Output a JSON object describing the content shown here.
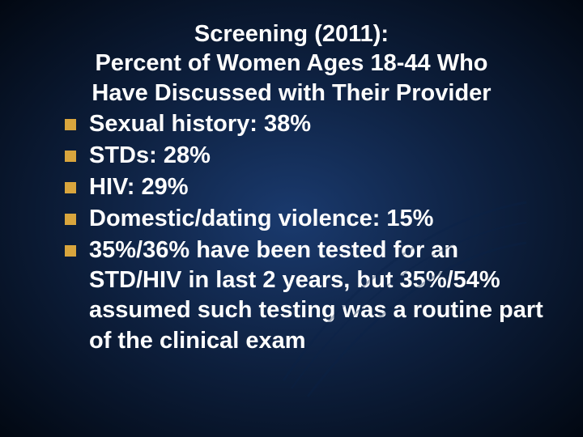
{
  "slide": {
    "title_line1": "Screening (2011):",
    "title_line2": "Percent of Women Ages 18-44 Who",
    "title_line3": "Have Discussed with Their Provider",
    "title_fontsize": 29,
    "title_color": "#fdfdfd",
    "bullets": [
      "Sexual history: 38%",
      "STDs: 28%",
      "HIV: 29%",
      "Domestic/dating violence: 15%",
      "35%/36% have been tested for an STD/HIV in last 2 years, but 35%/54% assumed such testing was a routine part of the clinical exam"
    ],
    "bullet_fontsize": 29,
    "bullet_color": "#fdfdfd",
    "bullet_marker_color": "#d9a53d",
    "bullet_marker_size": 14,
    "background_gradient": {
      "center": "#1a3a6e",
      "mid": "#0d1f3d",
      "edge": "#020812"
    },
    "swoosh_color": "#0a2248"
  }
}
